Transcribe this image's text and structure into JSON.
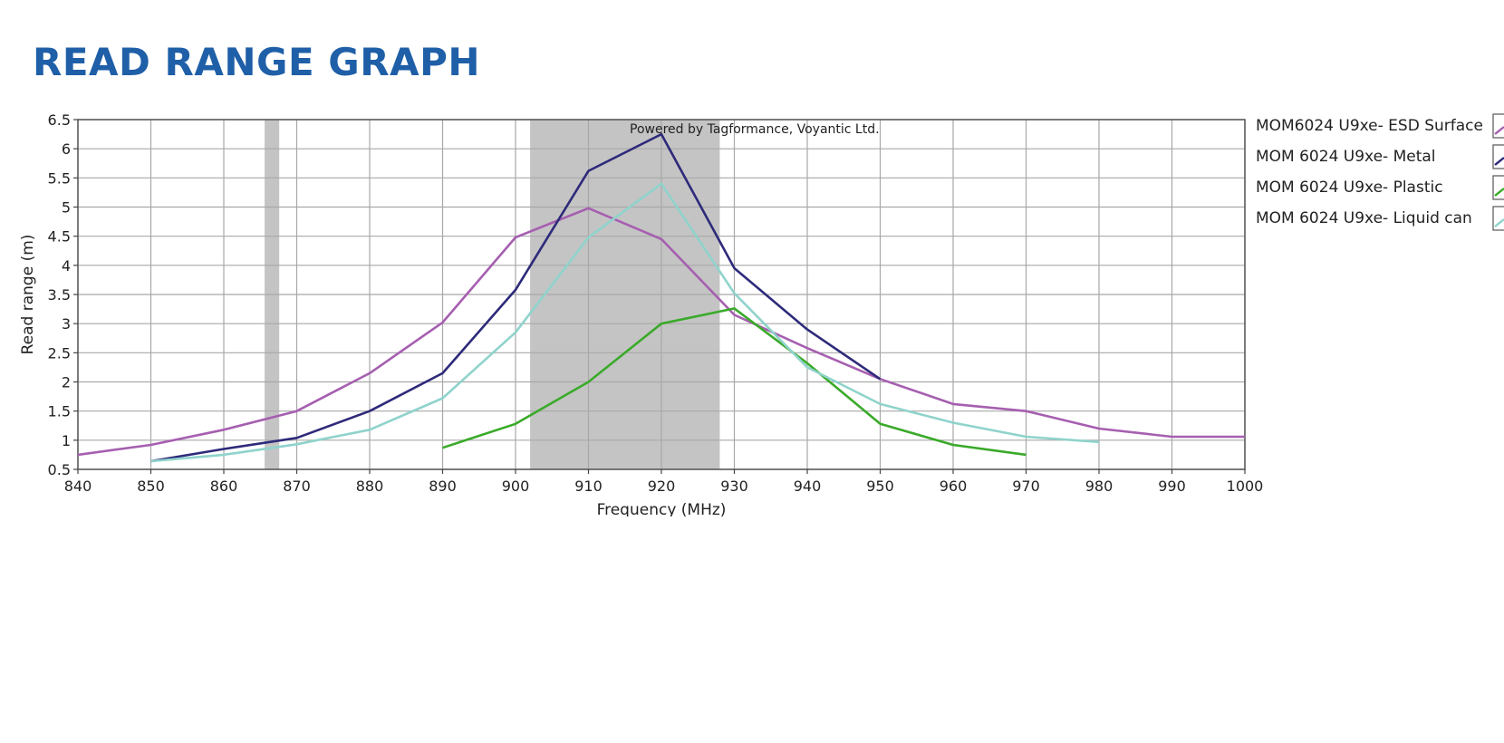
{
  "page": {
    "title": "READ RANGE GRAPH"
  },
  "chart_data": {
    "type": "line",
    "credit": "Powered by Tagformance, Voyantic Ltd.",
    "xlabel": "Frequency (MHz)",
    "ylabel": "Read range (m)",
    "xlim": [
      840,
      1000
    ],
    "ylim": [
      0.5,
      6.5
    ],
    "x_ticks": [
      840,
      850,
      860,
      870,
      880,
      890,
      900,
      910,
      920,
      930,
      940,
      950,
      960,
      970,
      980,
      990,
      1000
    ],
    "y_ticks": [
      0.5,
      1,
      1.5,
      2,
      2.5,
      3,
      3.5,
      4,
      4.5,
      5,
      5.5,
      6,
      6.5
    ],
    "x_tick_labels": [
      "840",
      "850",
      "860",
      "870",
      "880",
      "890",
      "900",
      "910",
      "920",
      "930",
      "940",
      "950",
      "960",
      "970",
      "980",
      "990",
      "1000"
    ],
    "y_tick_labels": [
      "0.5",
      "1",
      "1.5",
      "2",
      "2.5",
      "3",
      "3.5",
      "4",
      "4.5",
      "5",
      "5.5",
      "6",
      "6.5"
    ],
    "grid": true,
    "legend_position": "right",
    "shaded_bands": [
      {
        "from": 865.6,
        "to": 867.6,
        "color": "#c4c4c4"
      },
      {
        "from": 902,
        "to": 928,
        "color": "#c4c4c4"
      }
    ],
    "series": [
      {
        "name": "MOM6024 U9xe- ESD Surface",
        "color": "#a65fb0",
        "x": [
          840,
          850,
          860,
          870,
          880,
          890,
          900,
          910,
          920,
          930,
          940,
          950,
          960,
          970,
          980,
          990,
          1000
        ],
        "y": [
          0.75,
          0.92,
          1.18,
          1.5,
          2.15,
          3.02,
          4.48,
          4.98,
          4.45,
          3.15,
          2.58,
          2.05,
          1.62,
          1.5,
          1.2,
          1.06,
          1.06
        ]
      },
      {
        "name": "MOM 6024 U9xe- Metal",
        "color": "#2e2a7a",
        "x": [
          850,
          860,
          870,
          880,
          890,
          900,
          910,
          920,
          930,
          940,
          950
        ],
        "y": [
          0.64,
          0.85,
          1.04,
          1.5,
          2.15,
          3.58,
          5.62,
          6.25,
          3.95,
          2.9,
          2.05
        ]
      },
      {
        "name": "MOM 6024 U9xe- Plastic",
        "color": "#3aaa2a",
        "x": [
          890,
          900,
          910,
          920,
          930,
          940,
          950,
          960,
          970
        ],
        "y": [
          0.87,
          1.28,
          2.0,
          3.0,
          3.26,
          2.32,
          1.28,
          0.92,
          0.75
        ]
      },
      {
        "name": "MOM 6024 U9xe- Liquid can",
        "color": "#8fd3cc",
        "x": [
          850,
          860,
          870,
          880,
          890,
          900,
          910,
          920,
          930,
          940,
          950,
          960,
          970,
          980
        ],
        "y": [
          0.64,
          0.75,
          0.93,
          1.18,
          1.72,
          2.85,
          4.48,
          5.4,
          3.52,
          2.25,
          1.62,
          1.3,
          1.06,
          0.97
        ]
      }
    ]
  }
}
